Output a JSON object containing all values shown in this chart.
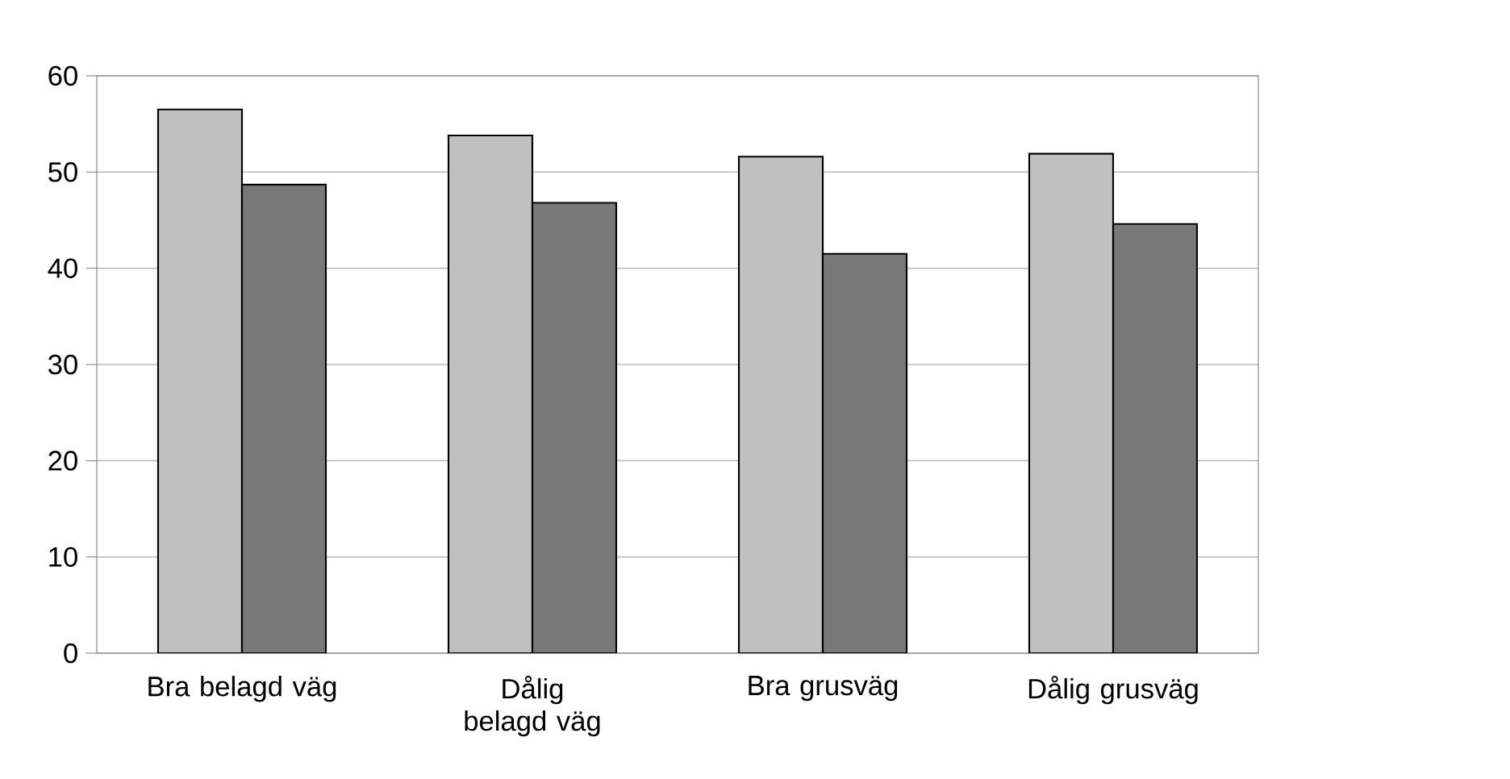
{
  "chart_data": {
    "type": "bar",
    "categories": [
      "Bra belagd väg",
      "Dålig belagd väg",
      "Bra grusväg",
      "Dålig grusväg"
    ],
    "series": [
      {
        "color": "#c0c0c0",
        "values": [
          56.5,
          53.8,
          51.6,
          51.9
        ]
      },
      {
        "color": "#787878",
        "values": [
          48.7,
          46.8,
          41.5,
          44.6
        ]
      }
    ],
    "ylim": [
      0,
      60
    ],
    "yticks": [
      0,
      10,
      20,
      30,
      40,
      50,
      60
    ],
    "grid": "y"
  }
}
